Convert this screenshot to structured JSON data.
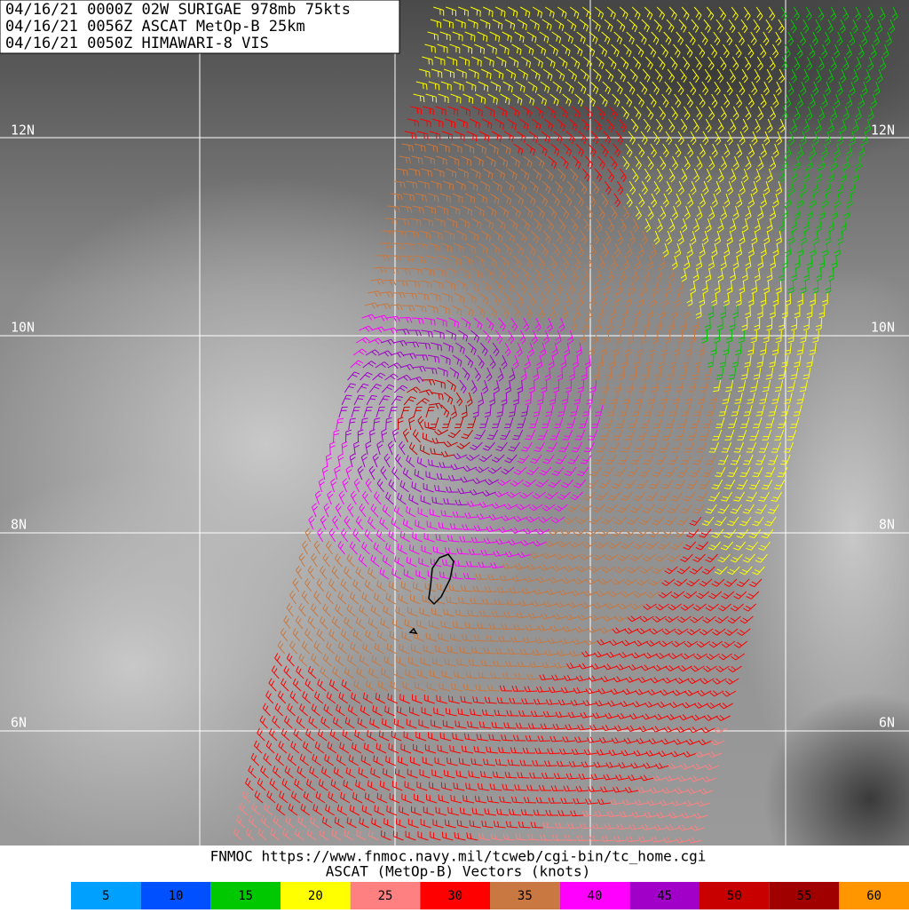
{
  "header": {
    "lines": [
      "04/16/21 0000Z  02W SURIGAE 978mb 75kts",
      "04/16/21 0056Z  ASCAT MetOp-B 25km",
      "04/16/21 0050Z  HIMAWARI-8 VIS"
    ]
  },
  "map": {
    "latitude_labels": [
      "12N",
      "10N",
      "8N",
      "6N"
    ]
  },
  "footer": {
    "source": "FNMOC https://www.fnmoc.navy.mil/tcweb/cgi-bin/tc_home.cgi",
    "caption": "ASCAT (MetOp-B) Vectors (knots)"
  },
  "legend": {
    "entries": [
      {
        "label": "5",
        "color": "#00a0ff"
      },
      {
        "label": "10",
        "color": "#0050ff"
      },
      {
        "label": "15",
        "color": "#00c800"
      },
      {
        "label": "20",
        "color": "#ffff00"
      },
      {
        "label": "25",
        "color": "#ff8080"
      },
      {
        "label": "30",
        "color": "#ff0000"
      },
      {
        "label": "35",
        "color": "#c87840"
      },
      {
        "label": "40",
        "color": "#ff00ff"
      },
      {
        "label": "45",
        "color": "#a000c8"
      },
      {
        "label": "50",
        "color": "#c80000"
      },
      {
        "label": "55",
        "color": "#a00000"
      },
      {
        "label": "60",
        "color": "#ff9600"
      }
    ]
  }
}
